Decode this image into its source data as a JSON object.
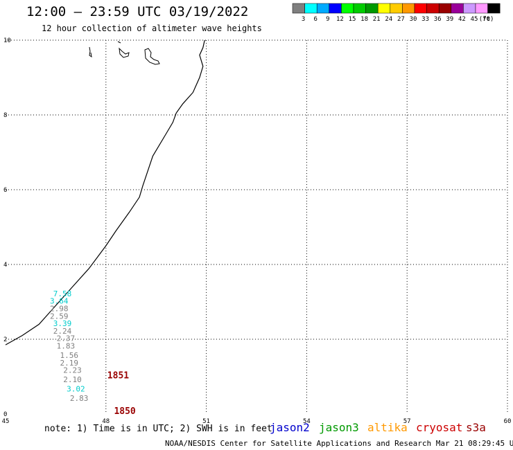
{
  "header": {
    "title": "12:00 – 23:59 UTC 03/19/2022",
    "subtitle": "12 hour collection of altimeter wave heights"
  },
  "colorbar": {
    "labels": [
      "3",
      "6",
      "9",
      "12",
      "15",
      "18",
      "21",
      "24",
      "27",
      "30",
      "33",
      "36",
      "39",
      "42",
      "45",
      "70",
      "(ft)"
    ],
    "colors": [
      "#7f7f7f",
      "#00ffff",
      "#00aaff",
      "#0000ff",
      "#00ff00",
      "#00cc00",
      "#009900",
      "#ffff00",
      "#ffcc00",
      "#ff9900",
      "#ff0000",
      "#cc0000",
      "#990000",
      "#990099",
      "#cc99ff",
      "#ff99ff",
      "#000000"
    ]
  },
  "footer": {
    "note": "note: 1) Time is in UTC; 2) SWH is in feet",
    "credit": "NOAA/NESDIS Center for Satellite Applications and Research   Mar 21 08:29:45 UTC 2022"
  },
  "satellites": [
    {
      "name": "jason2",
      "color": "#0000cc"
    },
    {
      "name": "jason3",
      "color": "#009900"
    },
    {
      "name": "altika",
      "color": "#ff9900"
    },
    {
      "name": "cryosat",
      "color": "#cc0000"
    },
    {
      "name": "s3a",
      "color": "#990000"
    }
  ],
  "chart_data": {
    "type": "scatter",
    "title": "12:00 – 23:59 UTC 03/19/2022",
    "subtitle": "12 hour collection of altimeter wave heights",
    "xlim": [
      45,
      60
    ],
    "ylim": [
      0,
      10
    ],
    "xticks": [
      "45",
      "48",
      "51",
      "54",
      "57",
      "60"
    ],
    "yticks": [
      "0",
      "2",
      "4",
      "6",
      "8",
      "10"
    ],
    "grid": true,
    "series": [
      {
        "name": "s3a",
        "color": "#990000",
        "pass_labels": [
          {
            "text": "1851",
            "x": 48.0,
            "y": 0.95
          },
          {
            "text": "1850",
            "x": 48.2,
            "y": 0.0
          }
        ],
        "points": [
          {
            "x": 46.7,
            "y": 3.15,
            "label": "7.58",
            "color": "#00cccc"
          },
          {
            "x": 46.6,
            "y": 2.95,
            "label": "3.64",
            "color": "#00cccc"
          },
          {
            "x": 46.6,
            "y": 2.75,
            "label": "2.98",
            "color": "#7f7f7f"
          },
          {
            "x": 46.6,
            "y": 2.55,
            "label": "2.59",
            "color": "#7f7f7f"
          },
          {
            "x": 46.7,
            "y": 2.35,
            "label": "3.39",
            "color": "#00cccc"
          },
          {
            "x": 46.7,
            "y": 2.15,
            "label": "2.24",
            "color": "#7f7f7f"
          },
          {
            "x": 46.8,
            "y": 1.95,
            "label": "2.37",
            "color": "#7f7f7f"
          },
          {
            "x": 46.8,
            "y": 1.75,
            "label": "1.83",
            "color": "#7f7f7f"
          },
          {
            "x": 46.9,
            "y": 1.5,
            "label": "1.56",
            "color": "#7f7f7f"
          },
          {
            "x": 46.9,
            "y": 1.3,
            "label": "2.19",
            "color": "#7f7f7f"
          },
          {
            "x": 47.0,
            "y": 1.1,
            "label": "2.23",
            "color": "#7f7f7f"
          },
          {
            "x": 47.0,
            "y": 0.85,
            "label": "2.10",
            "color": "#7f7f7f"
          },
          {
            "x": 47.1,
            "y": 0.6,
            "label": "3.02",
            "color": "#00cccc"
          },
          {
            "x": 47.2,
            "y": 0.35,
            "label": "2.83",
            "color": "#7f7f7f"
          }
        ]
      }
    ],
    "coastline": [
      [
        45.0,
        1.85
      ],
      [
        45.5,
        2.1
      ],
      [
        46.0,
        2.4
      ],
      [
        46.5,
        2.9
      ],
      [
        47.0,
        3.4
      ],
      [
        47.5,
        3.9
      ],
      [
        48.0,
        4.5
      ],
      [
        48.3,
        4.9
      ],
      [
        48.7,
        5.4
      ],
      [
        49.0,
        5.8
      ],
      [
        49.1,
        6.1
      ],
      [
        49.4,
        6.9
      ],
      [
        49.8,
        7.5
      ],
      [
        50.0,
        7.8
      ],
      [
        50.1,
        8.05
      ],
      [
        50.3,
        8.3
      ],
      [
        50.6,
        8.6
      ],
      [
        50.8,
        9.0
      ],
      [
        50.9,
        9.3
      ],
      [
        50.8,
        9.6
      ],
      [
        50.9,
        9.8
      ],
      [
        50.95,
        10.0
      ]
    ]
  }
}
